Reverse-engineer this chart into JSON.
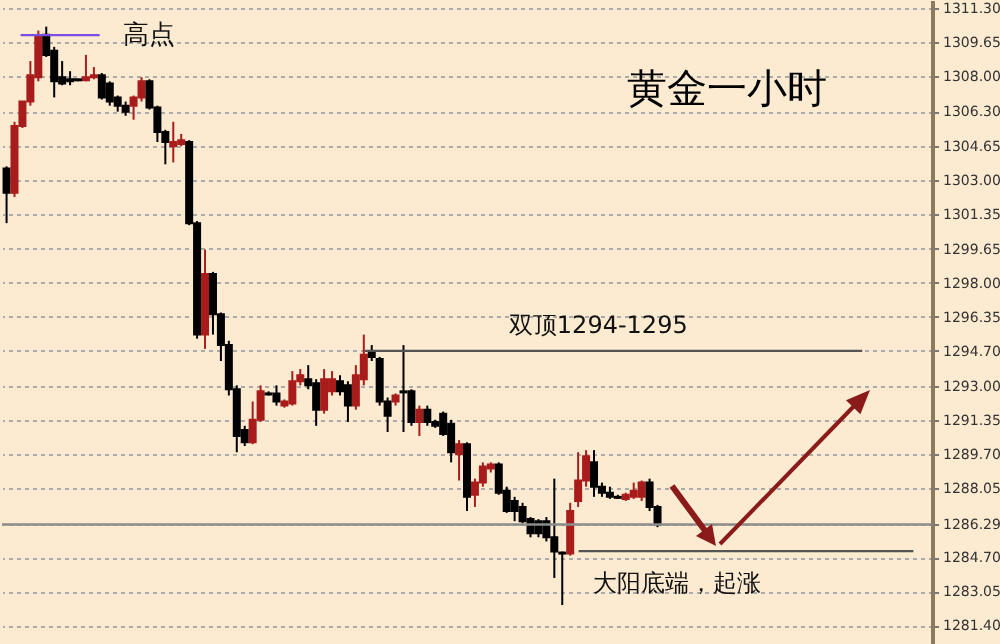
{
  "chart_data": {
    "type": "candlestick",
    "title": "黄金一小时",
    "categories": [
      null,
      null,
      null,
      null,
      null,
      null,
      null,
      null,
      null,
      null,
      null,
      null,
      null,
      null,
      null,
      null,
      null,
      null,
      null,
      null,
      null,
      null,
      null,
      null,
      null,
      null,
      null,
      null,
      null,
      null,
      null,
      null,
      null,
      null,
      null,
      null,
      null,
      null,
      null,
      null,
      null,
      null,
      null,
      null,
      null,
      null,
      null,
      null,
      null,
      null,
      null,
      null,
      null,
      null,
      null,
      null,
      null,
      null,
      null,
      null,
      null,
      null,
      null,
      null,
      null,
      null,
      null,
      null,
      null,
      null,
      null,
      null,
      null,
      null,
      null,
      null,
      null,
      null,
      null,
      null,
      null,
      null,
      null,
      null,
      null,
      null,
      null,
      null,
      null,
      null,
      null,
      null,
      null,
      null,
      null,
      null,
      null,
      null,
      null,
      null,
      null,
      null,
      null,
      null,
      null,
      null,
      null,
      null,
      null,
      null,
      null,
      null,
      null,
      null,
      null,
      null,
      null
    ],
    "ohlc": [
      [
        1303.54,
        1303.64,
        1300.89,
        1302.36
      ],
      [
        1302.36,
        1305.8,
        1302.16,
        1305.6
      ],
      [
        1305.6,
        1306.78,
        1305.5,
        1306.78
      ],
      [
        1306.78,
        1308.74,
        1306.58,
        1308.06
      ],
      [
        1307.96,
        1310.22,
        1307.76,
        1309.92
      ],
      [
        1310.02,
        1310.41,
        1308.94,
        1309.04
      ],
      [
        1309.24,
        1309.43,
        1306.98,
        1307.76
      ],
      [
        1307.96,
        1308.74,
        1307.57,
        1307.66
      ],
      [
        1307.86,
        1308.25,
        1307.57,
        1307.76
      ],
      [
        1307.86,
        1307.86,
        1307.76,
        1307.81
      ],
      [
        1307.81,
        1309.04,
        1307.76,
        1307.96
      ],
      [
        1307.96,
        1308.45,
        1307.86,
        1308.06
      ],
      [
        1308.06,
        1308.16,
        1306.88,
        1306.98
      ],
      [
        1307.66,
        1307.76,
        1306.58,
        1306.78
      ],
      [
        1306.98,
        1307.07,
        1306.29,
        1306.58
      ],
      [
        1306.58,
        1306.78,
        1306.09,
        1306.29
      ],
      [
        1306.58,
        1307.07,
        1305.9,
        1306.98
      ],
      [
        1306.98,
        1307.96,
        1306.78,
        1307.76
      ],
      [
        1307.76,
        1307.86,
        1306.39,
        1306.49
      ],
      [
        1306.49,
        1306.58,
        1304.82,
        1305.31
      ],
      [
        1305.31,
        1305.41,
        1303.74,
        1304.82
      ],
      [
        1304.62,
        1305.8,
        1303.83,
        1304.82
      ],
      [
        1304.72,
        1305.21,
        1304.62,
        1304.91
      ],
      [
        1304.82,
        1304.91,
        1300.79,
        1300.89
      ],
      [
        1300.89,
        1300.99,
        1295.29,
        1295.49
      ],
      [
        1295.49,
        1299.61,
        1294.8,
        1298.43
      ],
      [
        1298.43,
        1298.53,
        1295.49,
        1296.47
      ],
      [
        1296.47,
        1296.56,
        1294.21,
        1294.98
      ],
      [
        1294.98,
        1295.19,
        1292.54,
        1292.84
      ],
      [
        1292.84,
        1293.03,
        1289.79,
        1290.58
      ],
      [
        1290.87,
        1291.07,
        1290.09,
        1290.28
      ],
      [
        1290.28,
        1292.25,
        1290.18,
        1291.36
      ],
      [
        1291.36,
        1293.03,
        1291.26,
        1292.74
      ],
      [
        1292.64,
        1292.74,
        1292.54,
        1292.59
      ],
      [
        1292.64,
        1293.03,
        1292.05,
        1292.25
      ],
      [
        1292.05,
        1292.35,
        1291.95,
        1292.25
      ],
      [
        1292.15,
        1293.72,
        1292.05,
        1293.23
      ],
      [
        1293.23,
        1293.82,
        1293.03,
        1293.52
      ],
      [
        1293.33,
        1294.01,
        1292.84,
        1293.03
      ],
      [
        1293.13,
        1293.33,
        1291.07,
        1291.85
      ],
      [
        1291.85,
        1293.82,
        1291.66,
        1293.33
      ],
      [
        1292.74,
        1293.72,
        1292.54,
        1293.33
      ],
      [
        1293.23,
        1293.52,
        1292.54,
        1292.74
      ],
      [
        1293.03,
        1293.23,
        1291.26,
        1292.05
      ],
      [
        1292.05,
        1294.01,
        1291.85,
        1293.52
      ],
      [
        1293.33,
        1295.49,
        1293.03,
        1294.51
      ],
      [
        1294.6,
        1294.98,
        1294.21,
        1294.41
      ],
      [
        1294.31,
        1294.41,
        1292.05,
        1292.25
      ],
      [
        1292.25,
        1292.44,
        1290.77,
        1291.56
      ],
      [
        1292.25,
        1292.64,
        1292.05,
        1292.54
      ],
      [
        1292.74,
        1294.98,
        1290.77,
        1292.69
      ],
      [
        1292.74,
        1292.84,
        1291.07,
        1291.26
      ],
      [
        1291.26,
        1292.05,
        1290.58,
        1291.85
      ],
      [
        1291.85,
        1292.05,
        1291.07,
        1291.26
      ],
      [
        1291.26,
        1291.36,
        1290.97,
        1291.07
      ],
      [
        1291.66,
        1291.76,
        1290.58,
        1290.67
      ],
      [
        1291.17,
        1291.36,
        1289.3,
        1289.79
      ],
      [
        1289.69,
        1290.38,
        1288.42,
        1290.18
      ],
      [
        1290.18,
        1290.28,
        1286.94,
        1287.63
      ],
      [
        1287.73,
        1288.51,
        1287.14,
        1288.32
      ],
      [
        1288.32,
        1289.3,
        1288.12,
        1289.1
      ],
      [
        1289.0,
        1289.3,
        1288.81,
        1289.2
      ],
      [
        1289.2,
        1289.3,
        1287.73,
        1287.83
      ],
      [
        1287.93,
        1288.12,
        1286.85,
        1286.94
      ],
      [
        1287.43,
        1287.63,
        1286.45,
        1286.94
      ],
      [
        1287.14,
        1287.34,
        1286.35,
        1286.45
      ],
      [
        1286.55,
        1286.65,
        1285.67,
        1285.86
      ],
      [
        1286.45,
        1286.55,
        1285.67,
        1285.86
      ],
      [
        1286.45,
        1286.65,
        1285.47,
        1285.67
      ],
      [
        1285.67,
        1288.51,
        1283.7,
        1284.98
      ],
      [
        1284.93,
        1284.98,
        1282.39,
        1284.88
      ],
      [
        1284.88,
        1287.34,
        1284.78,
        1286.94
      ],
      [
        1287.43,
        1289.79,
        1287.14,
        1288.42
      ],
      [
        1288.42,
        1289.89,
        1288.12,
        1289.6
      ],
      [
        1289.3,
        1289.89,
        1287.63,
        1288.12
      ],
      [
        1288.12,
        1288.32,
        1287.63,
        1287.83
      ],
      [
        1287.83,
        1288.12,
        1287.53,
        1287.63
      ],
      [
        1287.63,
        1287.73,
        1287.53,
        1287.58
      ],
      [
        1287.53,
        1287.83,
        1287.43,
        1287.73
      ],
      [
        1287.63,
        1288.32,
        1287.53,
        1287.93
      ],
      [
        1287.63,
        1288.42,
        1287.43,
        1288.32
      ],
      [
        1288.32,
        1288.51,
        1286.94,
        1287.14
      ],
      [
        1287.14,
        1287.24,
        1286.16,
        1286.29
      ],
      null,
      null,
      null,
      null,
      null,
      null,
      null,
      null,
      null,
      null,
      null,
      null,
      null,
      null,
      null,
      null,
      null,
      null,
      null,
      null,
      null,
      null,
      null,
      null,
      null,
      null,
      null,
      null,
      null,
      null,
      null,
      null,
      null,
      null
    ],
    "colors": [
      "#000000",
      "#a81c1c",
      "#a81c1c",
      "#a81c1c",
      "#a81c1c",
      "#000000",
      "#000000",
      "#000000",
      "#000000",
      "#000000",
      "#a81c1c",
      "#a81c1c",
      "#000000",
      "#000000",
      "#000000",
      "#000000",
      "#a81c1c",
      "#a81c1c",
      "#000000",
      "#000000",
      "#000000",
      "#a81c1c",
      "#a81c1c",
      "#000000",
      "#000000",
      "#a81c1c",
      "#000000",
      "#000000",
      "#000000",
      "#000000",
      "#000000",
      "#a81c1c",
      "#a81c1c",
      "#000000",
      "#000000",
      "#a81c1c",
      "#a81c1c",
      "#a81c1c",
      "#000000",
      "#000000",
      "#a81c1c",
      "#a81c1c",
      "#000000",
      "#000000",
      "#a81c1c",
      "#a81c1c",
      "#000000",
      "#000000",
      "#000000",
      "#a81c1c",
      "#000000",
      "#000000",
      "#a81c1c",
      "#000000",
      "#000000",
      "#000000",
      "#000000",
      "#a81c1c",
      "#000000",
      "#a81c1c",
      "#a81c1c",
      "#a81c1c",
      "#000000",
      "#000000",
      "#000000",
      "#000000",
      "#000000",
      "#000000",
      "#000000",
      "#000000",
      "#000000",
      "#a81c1c",
      "#a81c1c",
      "#a81c1c",
      "#000000",
      "#000000",
      "#000000",
      "#000000",
      "#a81c1c",
      "#a81c1c",
      "#a81c1c",
      "#000000",
      "#000000",
      null,
      null,
      null,
      null,
      null,
      null,
      null,
      null,
      null,
      null,
      null,
      null,
      null,
      null,
      null,
      null,
      null,
      null,
      null,
      null,
      null,
      null,
      null,
      null,
      null,
      null,
      null,
      null,
      null,
      null,
      null,
      null,
      null,
      null
    ],
    "ylim": [
      1280.5,
      1311.7
    ],
    "yticks": [
      {
        "value": 1311.3,
        "label": "1311.30"
      },
      1309.65,
      {
        "value": 1308,
        "label": "1308.00"
      },
      {
        "value": 1306.3,
        "label": "1306.30"
      },
      1304.65,
      {
        "value": 1303,
        "label": "1303.00"
      },
      1301.35,
      1299.65,
      {
        "value": 1298,
        "label": "1298.00"
      },
      1296.35,
      {
        "value": 1294.7,
        "label": "1294.70"
      },
      {
        "value": 1293,
        "label": "1293.00"
      },
      1291.35,
      {
        "value": 1289.7,
        "label": "1289.70"
      },
      1288.05,
      1286.29,
      {
        "value": 1284.7,
        "label": "1284.70"
      },
      1283.05,
      {
        "value": 1281.4,
        "label": "1281.40"
      }
    ],
    "grid": "y",
    "ref_lines": [
      {
        "axis": "y",
        "value": 1310.0,
        "label": "高点",
        "color": "#7b4de0"
      },
      {
        "axis": "y",
        "value": 1294.7,
        "label": "双顶1294-1295",
        "color": "#555555"
      },
      {
        "axis": "y",
        "value": 1285.0,
        "label": "大阳底端，起涨",
        "color": "#555555"
      },
      {
        "axis": "y",
        "value": 1286.29,
        "color": "#8c8c8c"
      }
    ]
  }
}
